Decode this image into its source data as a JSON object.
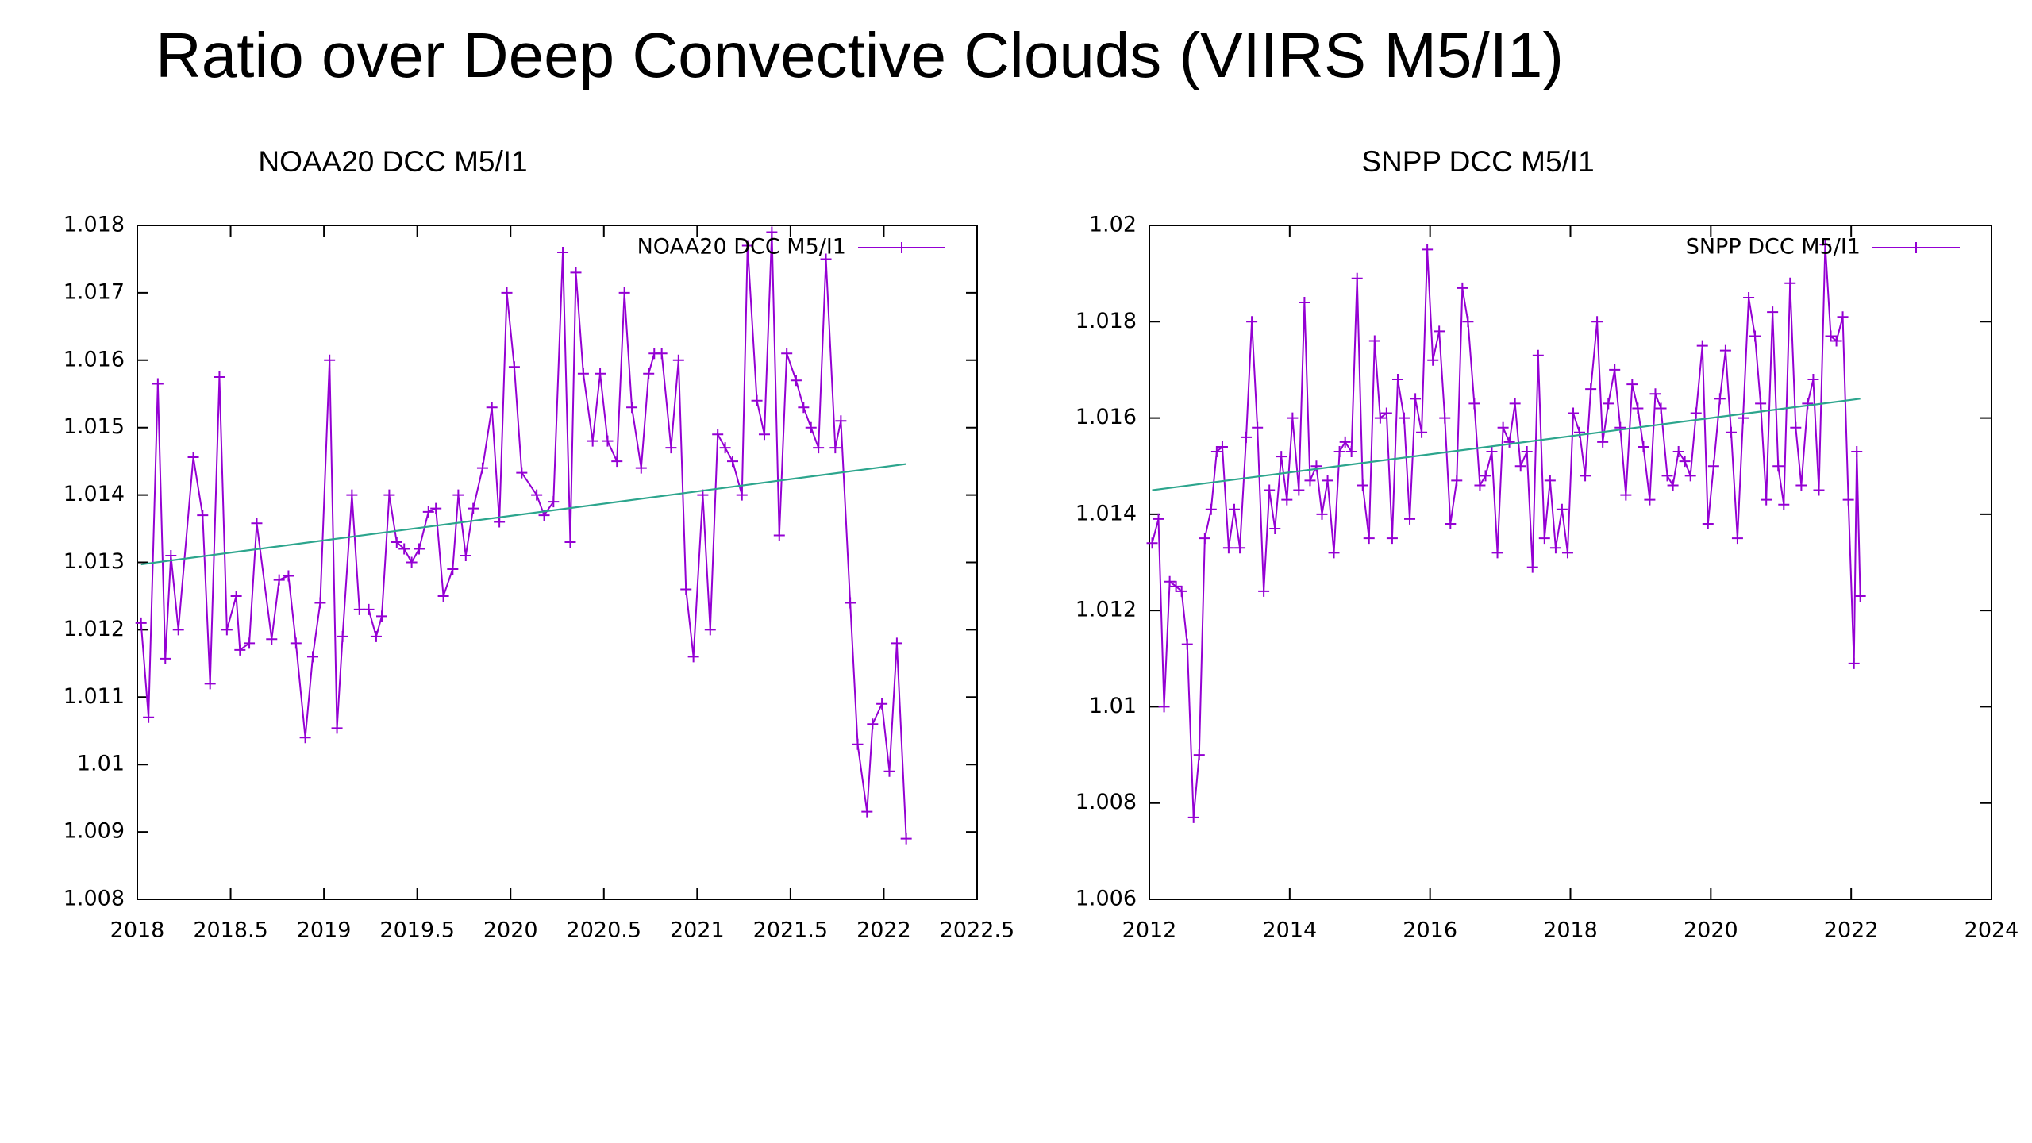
{
  "title": "Ratio over Deep Convective Clouds (VIIRS M5/I1)",
  "chart_data": [
    {
      "type": "line",
      "title": "NOAA20 DCC M5/I1",
      "legend": "top-right",
      "xlim": [
        2018,
        2022.5
      ],
      "xticks": [
        2018,
        2018.5,
        2019,
        2019.5,
        2020,
        2020.5,
        2021,
        2021.5,
        2022,
        2022.5
      ],
      "ylim": [
        1.008,
        1.018
      ],
      "yticks": [
        1.008,
        1.009,
        1.01,
        1.011,
        1.012,
        1.013,
        1.014,
        1.015,
        1.016,
        1.017,
        1.018
      ],
      "series": [
        {
          "name": "NOAA20 DCC M5/I1",
          "color": "#9400d3",
          "point_style": "plus",
          "x": [
            2018.02,
            2018.06,
            2018.11,
            2018.15,
            2018.18,
            2018.22,
            2018.3,
            2018.35,
            2018.39,
            2018.44,
            2018.48,
            2018.53,
            2018.55,
            2018.6,
            2018.64,
            2018.72,
            2018.76,
            2018.81,
            2018.85,
            2018.9,
            2018.94,
            2018.98,
            2019.03,
            2019.07,
            2019.1,
            2019.15,
            2019.19,
            2019.24,
            2019.28,
            2019.31,
            2019.35,
            2019.39,
            2019.43,
            2019.47,
            2019.51,
            2019.56,
            2019.6,
            2019.64,
            2019.69,
            2019.72,
            2019.76,
            2019.8,
            2019.85,
            2019.9,
            2019.94,
            2019.98,
            2020.02,
            2020.06,
            2020.14,
            2020.18,
            2020.23,
            2020.28,
            2020.32,
            2020.35,
            2020.39,
            2020.44,
            2020.48,
            2020.52,
            2020.57,
            2020.61,
            2020.65,
            2020.7,
            2020.74,
            2020.77,
            2020.81,
            2020.86,
            2020.9,
            2020.94,
            2020.98,
            2021.03,
            2021.07,
            2021.11,
            2021.15,
            2021.19,
            2021.24,
            2021.27,
            2021.32,
            2021.36,
            2021.4,
            2021.44,
            2021.48,
            2021.53,
            2021.57,
            2021.61,
            2021.65,
            2021.69,
            2021.74,
            2021.77,
            2021.82,
            2021.86,
            2021.91,
            2021.94,
            2021.99,
            2022.03,
            2022.07,
            2022.12
          ],
          "values": [
            1.0121,
            1.0107,
            1.01565,
            1.01157,
            1.0131,
            1.012,
            1.01456,
            1.0137,
            1.0112,
            1.01575,
            1.012,
            1.0125,
            1.0117,
            1.0118,
            1.01358,
            1.01186,
            1.01274,
            1.0128,
            1.0118,
            1.0104,
            1.0116,
            1.0124,
            1.016,
            1.01054,
            1.0119,
            1.014,
            1.0123,
            1.0123,
            1.0119,
            1.0122,
            1.014,
            1.0133,
            1.0132,
            1.013,
            1.0132,
            1.01375,
            1.0138,
            1.0125,
            1.0129,
            1.014,
            1.0131,
            1.0138,
            1.0144,
            1.0153,
            1.0136,
            1.017,
            1.0159,
            1.01433,
            1.014,
            1.0137,
            1.0139,
            1.0176,
            1.0133,
            1.0173,
            1.0158,
            1.0148,
            1.0158,
            1.0148,
            1.0145,
            1.017,
            1.0153,
            1.0144,
            1.0158,
            1.0161,
            1.0161,
            1.0147,
            1.016,
            1.0126,
            1.0116,
            1.014,
            1.012,
            1.0149,
            1.0147,
            1.0145,
            1.014,
            1.0177,
            1.0154,
            1.0149,
            1.0179,
            1.0134,
            1.0161,
            1.0157,
            1.0153,
            1.015,
            1.0147,
            1.0175,
            1.0147,
            1.0151,
            1.0124,
            1.0103,
            1.0093,
            1.0106,
            1.0109,
            1.0099,
            1.0118,
            1.0089
          ]
        },
        {
          "color": "#2ca58d",
          "x": [
            2018.02,
            2022.12
          ],
          "values": [
            1.01297,
            1.01446
          ]
        }
      ]
    },
    {
      "type": "line",
      "title": "SNPP DCC M5/I1",
      "legend": "top-right",
      "xlim": [
        2012,
        2024
      ],
      "xticks": [
        2012,
        2014,
        2016,
        2018,
        2020,
        2022,
        2024
      ],
      "ylim": [
        1.006,
        1.02
      ],
      "yticks": [
        1.006,
        1.008,
        1.01,
        1.012,
        1.014,
        1.016,
        1.018,
        1.02
      ],
      "series": [
        {
          "name": "SNPP DCC M5/I1",
          "color": "#9400d3",
          "point_style": "plus",
          "x": [
            2012.04,
            2012.13,
            2012.21,
            2012.29,
            2012.38,
            2012.46,
            2012.54,
            2012.63,
            2012.71,
            2012.79,
            2012.88,
            2012.96,
            2013.04,
            2013.13,
            2013.21,
            2013.29,
            2013.38,
            2013.46,
            2013.54,
            2013.63,
            2013.71,
            2013.79,
            2013.88,
            2013.96,
            2014.04,
            2014.13,
            2014.21,
            2014.29,
            2014.38,
            2014.46,
            2014.54,
            2014.63,
            2014.71,
            2014.79,
            2014.88,
            2014.96,
            2015.04,
            2015.13,
            2015.21,
            2015.29,
            2015.38,
            2015.46,
            2015.54,
            2015.63,
            2015.71,
            2015.79,
            2015.88,
            2015.96,
            2016.04,
            2016.13,
            2016.21,
            2016.29,
            2016.38,
            2016.46,
            2016.54,
            2016.63,
            2016.71,
            2016.79,
            2016.88,
            2016.96,
            2017.04,
            2017.13,
            2017.21,
            2017.29,
            2017.38,
            2017.46,
            2017.54,
            2017.63,
            2017.71,
            2017.79,
            2017.88,
            2017.96,
            2018.04,
            2018.13,
            2018.21,
            2018.29,
            2018.38,
            2018.46,
            2018.54,
            2018.63,
            2018.71,
            2018.79,
            2018.88,
            2018.96,
            2019.04,
            2019.13,
            2019.21,
            2019.29,
            2019.38,
            2019.46,
            2019.54,
            2019.63,
            2019.71,
            2019.79,
            2019.88,
            2019.96,
            2020.04,
            2020.13,
            2020.21,
            2020.29,
            2020.38,
            2020.46,
            2020.54,
            2020.63,
            2020.71,
            2020.79,
            2020.88,
            2020.96,
            2021.04,
            2021.13,
            2021.21,
            2021.29,
            2021.38,
            2021.46,
            2021.54,
            2021.63,
            2021.71,
            2021.79,
            2021.88,
            2021.96,
            2022.04,
            2022.08,
            2022.13
          ],
          "values": [
            1.0134,
            1.0139,
            1.01,
            1.0126,
            1.0125,
            1.0124,
            1.0113,
            1.0077,
            1.009,
            1.0135,
            1.0141,
            1.0153,
            1.0154,
            1.0133,
            1.0141,
            1.0133,
            1.0156,
            1.018,
            1.0158,
            1.0124,
            1.0145,
            1.0137,
            1.0152,
            1.0143,
            1.016,
            1.0145,
            1.0184,
            1.0147,
            1.015,
            1.014,
            1.0147,
            1.0132,
            1.0153,
            1.0155,
            1.0153,
            1.0189,
            1.0146,
            1.0135,
            1.0176,
            1.016,
            1.0161,
            1.0135,
            1.0168,
            1.016,
            1.0139,
            1.0164,
            1.0157,
            1.0195,
            1.0172,
            1.0178,
            1.016,
            1.0138,
            1.0147,
            1.0187,
            1.018,
            1.0163,
            1.0146,
            1.0148,
            1.0153,
            1.0132,
            1.0158,
            1.0155,
            1.0163,
            1.015,
            1.0153,
            1.0129,
            1.0173,
            1.0135,
            1.0147,
            1.0133,
            1.0141,
            1.0132,
            1.0161,
            1.0157,
            1.0148,
            1.0166,
            1.018,
            1.0155,
            1.0163,
            1.017,
            1.0158,
            1.0144,
            1.0167,
            1.0162,
            1.0154,
            1.0143,
            1.0165,
            1.0162,
            1.0148,
            1.0146,
            1.0153,
            1.0151,
            1.0148,
            1.0161,
            1.0175,
            1.0138,
            1.015,
            1.0164,
            1.0174,
            1.0157,
            1.0135,
            1.016,
            1.0185,
            1.0177,
            1.0163,
            1.0143,
            1.0182,
            1.015,
            1.0142,
            1.0188,
            1.0158,
            1.0146,
            1.0163,
            1.0168,
            1.0145,
            1.0196,
            1.0177,
            1.0176,
            1.0181,
            1.0143,
            1.0109,
            1.0153,
            1.0123
          ]
        },
        {
          "color": "#2ca58d",
          "x": [
            2012.04,
            2022.13
          ],
          "values": [
            1.0145,
            1.0164
          ]
        }
      ]
    }
  ]
}
